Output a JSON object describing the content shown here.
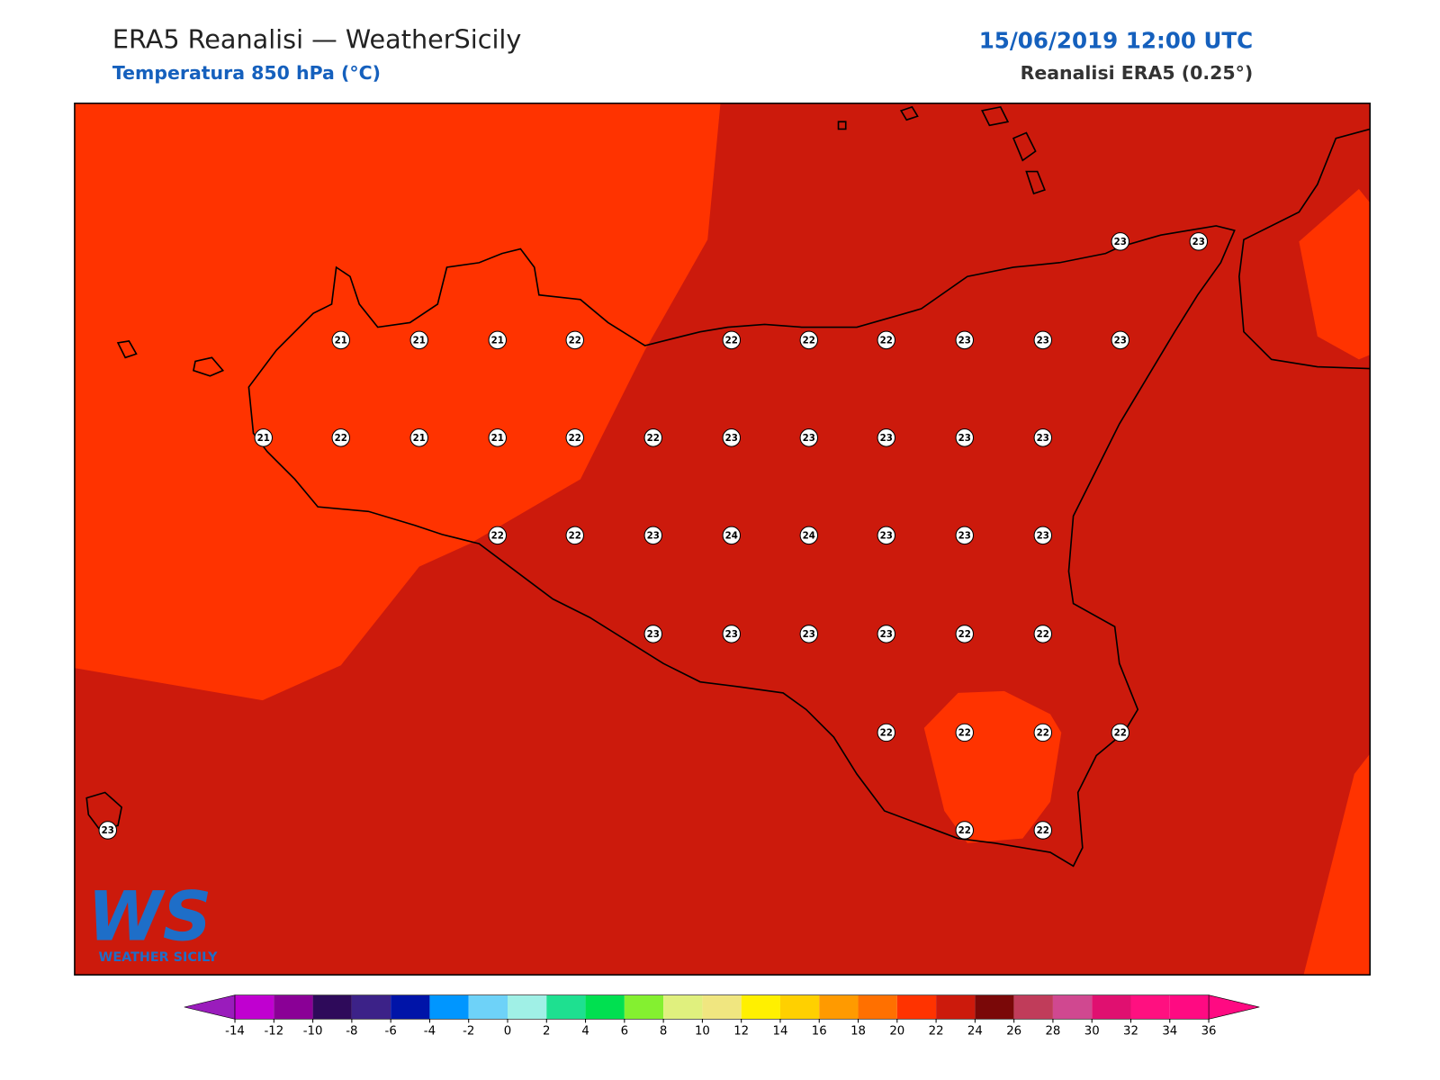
{
  "header": {
    "title": "ERA5 Reanalisi — WeatherSicily",
    "subtitle": "Temperatura 850 hPa (°C)",
    "datetime": "15/06/2019 12:00 UTC",
    "source": "Reanalisi ERA5 (0.25°)"
  },
  "map": {
    "points": [
      23,
      23,
      21,
      21,
      21,
      22,
      22,
      22,
      22,
      23,
      23,
      23,
      21,
      22,
      21,
      21,
      22,
      22,
      23,
      23,
      23,
      23,
      23,
      22,
      22,
      23,
      24,
      24,
      23,
      23,
      23,
      23,
      23,
      23,
      23,
      22,
      22,
      22,
      22,
      22,
      22,
      23,
      22,
      22
    ]
  },
  "logo": {
    "text": "WS",
    "name": "WEATHER SICILY"
  },
  "colorbar": {
    "ticks": [
      -14,
      -12,
      -10,
      -8,
      -6,
      -4,
      -2,
      0,
      2,
      4,
      6,
      8,
      10,
      12,
      14,
      16,
      18,
      20,
      22,
      24,
      26,
      28,
      30,
      32,
      34,
      36
    ],
    "colors": [
      "#c000d0",
      "#8a0096",
      "#2e0a5a",
      "#3c2288",
      "#0014a8",
      "#0096ff",
      "#6ed2f8",
      "#a0f0e6",
      "#1ee090",
      "#00e050",
      "#84f030",
      "#e0f07e",
      "#f0e680",
      "#fff000",
      "#ffd000",
      "#ff9a00",
      "#ff7000",
      "#ff3300",
      "#cc1a0c",
      "#7a0808",
      "#c03c5a",
      "#d04890",
      "#e01070",
      "#ff1080",
      "#ff0a82"
    ],
    "extend_colors": [
      "#9a1cbc",
      "#ff0a82"
    ]
  }
}
